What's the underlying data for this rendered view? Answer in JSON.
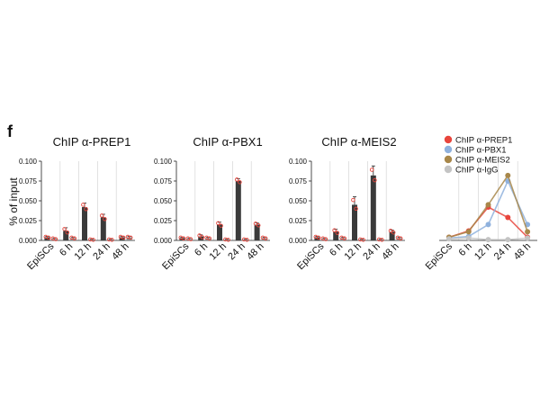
{
  "panel_label": "f",
  "y_axis_label": "% of input",
  "chart_data": [
    {
      "type": "bar",
      "title": "ChIP α-PREP1",
      "categories": [
        "EpiSCs",
        "6 h",
        "12 h",
        "24 h",
        "48 h"
      ],
      "ylim": [
        0,
        0.1
      ],
      "yticks": [
        "0.000",
        "0.025",
        "0.050",
        "0.075",
        "0.100"
      ],
      "series": [
        {
          "values": [
            0.004,
            0.012,
            0.042,
            0.029,
            0.004
          ],
          "errors": [
            0.001,
            0.004,
            0.005,
            0.004,
            0.001
          ]
        },
        {
          "values": [
            0.002,
            0.003,
            0.001,
            0.001,
            0.004
          ],
          "errors": [
            0.001,
            0.001,
            0.0005,
            0.0005,
            0.001
          ]
        }
      ]
    },
    {
      "type": "bar",
      "title": "ChIP α-PBX1",
      "categories": [
        "EpiSCs",
        "6 h",
        "12 h",
        "24 h",
        "48 h"
      ],
      "ylim": [
        0,
        0.1
      ],
      "yticks": [
        "0.000",
        "0.025",
        "0.050",
        "0.075",
        "0.100"
      ],
      "series": [
        {
          "values": [
            0.003,
            0.005,
            0.02,
            0.075,
            0.02
          ],
          "errors": [
            0.001,
            0.002,
            0.003,
            0.003,
            0.002
          ]
        },
        {
          "values": [
            0.002,
            0.003,
            0.001,
            0.001,
            0.003
          ],
          "errors": [
            0.001,
            0.001,
            0.0005,
            0.0005,
            0.001
          ]
        }
      ]
    },
    {
      "type": "bar",
      "title": "ChIP α-MEIS2",
      "categories": [
        "EpiSCs",
        "6 h",
        "12 h",
        "24 h",
        "48 h"
      ],
      "ylim": [
        0,
        0.1
      ],
      "yticks": [
        "0.000",
        "0.025",
        "0.050",
        "0.075",
        "0.100"
      ],
      "series": [
        {
          "values": [
            0.004,
            0.011,
            0.045,
            0.082,
            0.011
          ],
          "errors": [
            0.001,
            0.003,
            0.01,
            0.012,
            0.002
          ]
        },
        {
          "values": [
            0.002,
            0.003,
            0.001,
            0.001,
            0.003
          ],
          "errors": [
            0.001,
            0.001,
            0.0005,
            0.0005,
            0.001
          ]
        }
      ]
    },
    {
      "type": "line",
      "categories": [
        "EpiSCs",
        "6 h",
        "12 h",
        "24 h",
        "48 h"
      ],
      "ylim": [
        0,
        0.1
      ],
      "series": [
        {
          "name": "ChIP α-PREP1",
          "color": "#e8453c",
          "values": [
            0.004,
            0.012,
            0.042,
            0.029,
            0.004
          ]
        },
        {
          "name": "ChIP α-PBX1",
          "color": "#8fb1dd",
          "values": [
            0.003,
            0.005,
            0.02,
            0.075,
            0.02
          ]
        },
        {
          "name": "ChIP α-MEIS2",
          "color": "#a8874a",
          "values": [
            0.004,
            0.011,
            0.045,
            0.082,
            0.011
          ]
        },
        {
          "name": "ChIP α-IgG",
          "color": "#c4c4c4",
          "values": [
            0.002,
            0.003,
            0.001,
            0.001,
            0.003
          ]
        }
      ],
      "legend_position": "top-right"
    }
  ]
}
